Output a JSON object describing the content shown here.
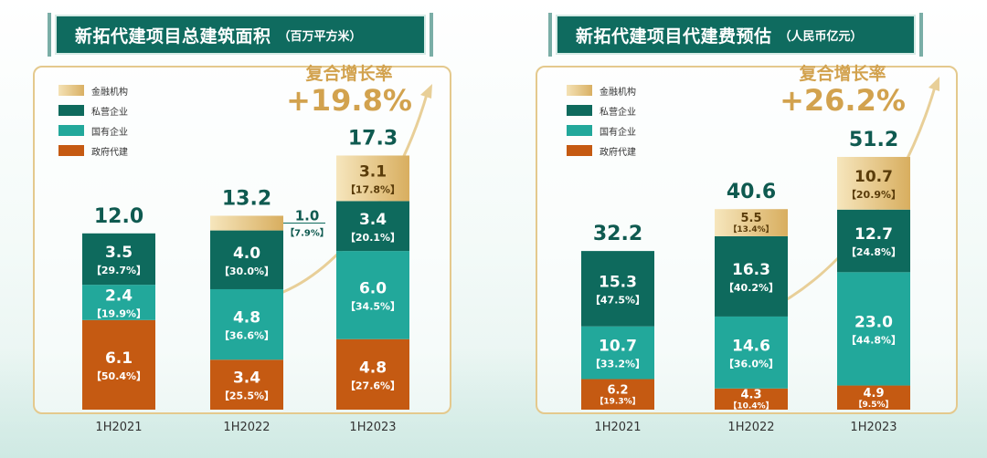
{
  "colors": {
    "finance": "#e8c98a",
    "private": "#0e6a5d",
    "state": "#22a89b",
    "gov": "#c55a12",
    "title_bg": "#0f6b5f",
    "gold": "#d2a24e"
  },
  "chart_data": [
    {
      "type": "bar",
      "stacked": true,
      "title": "新拓代建项目总建筑面积",
      "unit": "（百万平方米）",
      "categories": [
        "1H2021",
        "1H2022",
        "1H2023"
      ],
      "totals": [
        "12.0",
        "13.2",
        "17.3"
      ],
      "cagr_label": "复合增长率",
      "cagr_value": "+19.8%",
      "legend_position": "top-left",
      "series": [
        {
          "name": "政府代建",
          "key": "gov",
          "values": [
            6.1,
            3.4,
            4.8
          ],
          "labels": [
            "6.1",
            "3.4",
            "4.8"
          ],
          "shares": [
            "【50.4%】",
            "【25.5%】",
            "【27.6%】"
          ]
        },
        {
          "name": "国有企业",
          "key": "state",
          "values": [
            2.4,
            4.8,
            6.0
          ],
          "labels": [
            "2.4",
            "4.8",
            "6.0"
          ],
          "shares": [
            "【19.9%】",
            "【36.6%】",
            "【34.5%】"
          ]
        },
        {
          "name": "私营企业",
          "key": "private",
          "values": [
            3.5,
            4.0,
            3.4
          ],
          "labels": [
            "3.5",
            "4.0",
            "3.4"
          ],
          "shares": [
            "【29.7%】",
            "【30.0%】",
            "【20.1%】"
          ]
        },
        {
          "name": "金融机构",
          "key": "finance",
          "values": [
            0,
            1.0,
            3.1
          ],
          "labels": [
            "",
            "1.0",
            "3.1"
          ],
          "shares": [
            "",
            "【7.9%】",
            "【17.8%】"
          ]
        }
      ]
    },
    {
      "type": "bar",
      "stacked": true,
      "title": "新拓代建项目代建费预估",
      "unit": "（人民币亿元）",
      "categories": [
        "1H2021",
        "1H2022",
        "1H2023"
      ],
      "totals": [
        "32.2",
        "40.6",
        "51.2"
      ],
      "cagr_label": "复合增长率",
      "cagr_value": "+26.2%",
      "legend_position": "top-left",
      "series": [
        {
          "name": "政府代建",
          "key": "gov",
          "values": [
            6.2,
            4.3,
            4.9
          ],
          "labels": [
            "6.2",
            "4.3",
            "4.9"
          ],
          "shares": [
            "【19.3%】",
            "【10.4%】",
            "【9.5%】"
          ]
        },
        {
          "name": "国有企业",
          "key": "state",
          "values": [
            10.7,
            14.6,
            23.0
          ],
          "labels": [
            "10.7",
            "14.6",
            "23.0"
          ],
          "shares": [
            "【33.2%】",
            "【36.0%】",
            "【44.8%】"
          ]
        },
        {
          "name": "私营企业",
          "key": "private",
          "values": [
            15.3,
            16.3,
            12.7
          ],
          "labels": [
            "15.3",
            "16.3",
            "12.7"
          ],
          "shares": [
            "【47.5%】",
            "【40.2%】",
            "【24.8%】"
          ]
        },
        {
          "name": "金融机构",
          "key": "finance",
          "values": [
            0,
            5.5,
            10.7
          ],
          "labels": [
            "",
            "5.5",
            "10.7"
          ],
          "shares": [
            "",
            "【13.4%】",
            "【20.9%】"
          ]
        }
      ]
    }
  ]
}
